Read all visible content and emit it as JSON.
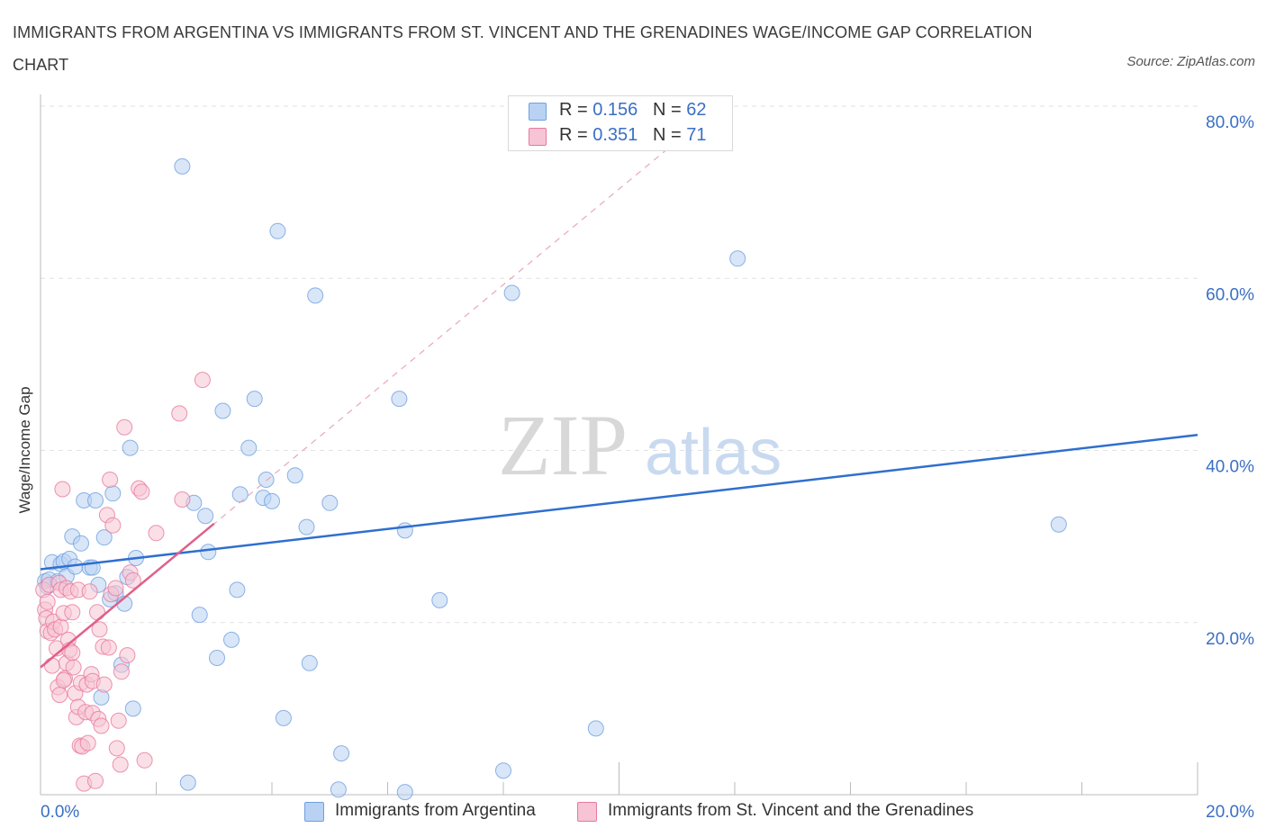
{
  "title": "IMMIGRANTS FROM ARGENTINA VS IMMIGRANTS FROM ST. VINCENT AND THE GRENADINES WAGE/INCOME GAP CORRELATION CHART",
  "source": "Source: ZipAtlas.com",
  "watermark": {
    "zip": "ZIP",
    "atlas": "atlas"
  },
  "colors": {
    "blue": "#6fa0e0",
    "blue_fill": "#b9d2f3",
    "blue_line": "#2f6fcf",
    "pink": "#e8799c",
    "pink_fill": "#f6c4d4",
    "pink_line": "#e0608a",
    "axis_text": "#3a6fc4"
  },
  "legend_top": {
    "rows": [
      {
        "r_label": "R = ",
        "r_value": "0.156",
        "n_label": "N = ",
        "n_value": "62"
      },
      {
        "r_label": "R = ",
        "r_value": "0.351",
        "n_label": "N = ",
        "n_value": "71"
      }
    ]
  },
  "legend_bottom": {
    "series": [
      "Immigrants from Argentina",
      "Immigrants from St. Vincent and the Grenadines"
    ]
  },
  "chart_data": {
    "type": "scatter",
    "title": "IMMIGRANTS FROM ARGENTINA VS IMMIGRANTS FROM ST. VINCENT AND THE GRENADINES WAGE/INCOME GAP CORRELATION CHART",
    "xlabel": "",
    "ylabel": "Wage/Income Gap",
    "xlim": [
      0,
      20
    ],
    "ylim": [
      0,
      80
    ],
    "x_ticks": [
      "0.0%",
      "20.0%"
    ],
    "y_ticks": [
      "20.0%",
      "40.0%",
      "60.0%",
      "80.0%"
    ],
    "y_tick_values": [
      20,
      40,
      60,
      80
    ],
    "grid": true,
    "legend_position": "top-center",
    "series": [
      {
        "name": "Immigrants from Argentina",
        "color": "#6fa0e0",
        "R": 0.156,
        "N": 62,
        "trend": {
          "x": [
            0,
            20
          ],
          "y": [
            26.2,
            41.8
          ]
        },
        "points": [
          [
            0.08,
            24.8
          ],
          [
            0.12,
            24.2
          ],
          [
            0.15,
            25.0
          ],
          [
            0.2,
            27.0
          ],
          [
            0.3,
            24.8
          ],
          [
            0.35,
            26.8
          ],
          [
            0.4,
            27.1
          ],
          [
            0.45,
            25.4
          ],
          [
            0.5,
            27.4
          ],
          [
            0.55,
            30.0
          ],
          [
            0.6,
            26.5
          ],
          [
            0.7,
            29.2
          ],
          [
            0.75,
            34.2
          ],
          [
            0.85,
            26.4
          ],
          [
            0.9,
            26.4
          ],
          [
            0.95,
            34.2
          ],
          [
            1.0,
            24.4
          ],
          [
            1.05,
            11.3
          ],
          [
            1.1,
            29.9
          ],
          [
            1.2,
            22.7
          ],
          [
            1.25,
            35.0
          ],
          [
            1.3,
            23.4
          ],
          [
            1.4,
            15.1
          ],
          [
            1.45,
            22.2
          ],
          [
            1.5,
            25.3
          ],
          [
            1.55,
            40.3
          ],
          [
            1.6,
            10.0
          ],
          [
            1.65,
            27.5
          ],
          [
            2.45,
            73.0
          ],
          [
            2.55,
            1.4
          ],
          [
            2.65,
            33.9
          ],
          [
            2.75,
            20.9
          ],
          [
            2.85,
            32.4
          ],
          [
            2.9,
            28.2
          ],
          [
            3.05,
            15.9
          ],
          [
            3.15,
            44.6
          ],
          [
            3.3,
            18.0
          ],
          [
            3.4,
            23.8
          ],
          [
            3.45,
            34.9
          ],
          [
            3.6,
            40.3
          ],
          [
            3.7,
            46.0
          ],
          [
            3.85,
            34.5
          ],
          [
            3.9,
            36.6
          ],
          [
            4.0,
            34.1
          ],
          [
            4.1,
            65.5
          ],
          [
            4.2,
            8.9
          ],
          [
            4.4,
            37.1
          ],
          [
            4.6,
            31.1
          ],
          [
            4.65,
            15.3
          ],
          [
            4.75,
            58.0
          ],
          [
            5.0,
            33.9
          ],
          [
            5.15,
            0.6
          ],
          [
            5.2,
            4.8
          ],
          [
            6.2,
            46.0
          ],
          [
            6.3,
            30.7
          ],
          [
            6.3,
            0.3
          ],
          [
            6.9,
            22.6
          ],
          [
            8.0,
            2.8
          ],
          [
            8.15,
            58.3
          ],
          [
            9.6,
            7.7
          ],
          [
            12.05,
            62.3
          ],
          [
            17.6,
            31.4
          ]
        ]
      },
      {
        "name": "Immigrants from St. Vincent and the Grenadines",
        "color": "#e8799c",
        "R": 0.351,
        "N": 71,
        "trend": {
          "x": [
            0,
            3.0
          ],
          "y": [
            14.8,
            31.5
          ]
        },
        "trend_extended": {
          "x": [
            0,
            11.3
          ],
          "y": [
            14.8,
            77.6
          ]
        },
        "points": [
          [
            0.05,
            23.8
          ],
          [
            0.08,
            21.5
          ],
          [
            0.1,
            20.5
          ],
          [
            0.12,
            19.0
          ],
          [
            0.12,
            22.4
          ],
          [
            0.15,
            24.4
          ],
          [
            0.18,
            18.8
          ],
          [
            0.2,
            15.0
          ],
          [
            0.22,
            20.1
          ],
          [
            0.25,
            19.2
          ],
          [
            0.28,
            17.0
          ],
          [
            0.3,
            12.5
          ],
          [
            0.32,
            24.6
          ],
          [
            0.33,
            11.6
          ],
          [
            0.35,
            19.5
          ],
          [
            0.35,
            23.8
          ],
          [
            0.38,
            35.5
          ],
          [
            0.4,
            21.1
          ],
          [
            0.42,
            13.5
          ],
          [
            0.45,
            15.3
          ],
          [
            0.45,
            24.0
          ],
          [
            0.48,
            18.0
          ],
          [
            0.5,
            16.8
          ],
          [
            0.52,
            23.6
          ],
          [
            0.55,
            21.2
          ],
          [
            0.57,
            14.8
          ],
          [
            0.6,
            11.8
          ],
          [
            0.62,
            9.0
          ],
          [
            0.65,
            10.2
          ],
          [
            0.65,
            23.8
          ],
          [
            0.68,
            5.7
          ],
          [
            0.7,
            13.0
          ],
          [
            0.72,
            5.6
          ],
          [
            0.75,
            1.3
          ],
          [
            0.78,
            9.6
          ],
          [
            0.8,
            12.8
          ],
          [
            0.82,
            6.0
          ],
          [
            0.85,
            23.6
          ],
          [
            0.88,
            14.0
          ],
          [
            0.9,
            13.2
          ],
          [
            0.9,
            9.5
          ],
          [
            0.95,
            1.6
          ],
          [
            0.98,
            21.2
          ],
          [
            1.0,
            8.8
          ],
          [
            1.02,
            19.2
          ],
          [
            1.05,
            8.0
          ],
          [
            1.08,
            17.2
          ],
          [
            1.1,
            12.8
          ],
          [
            1.15,
            32.5
          ],
          [
            1.18,
            17.1
          ],
          [
            1.2,
            36.6
          ],
          [
            1.22,
            23.3
          ],
          [
            1.25,
            31.3
          ],
          [
            1.3,
            24.0
          ],
          [
            1.32,
            5.4
          ],
          [
            1.35,
            8.6
          ],
          [
            1.38,
            3.5
          ],
          [
            1.4,
            14.3
          ],
          [
            1.45,
            42.7
          ],
          [
            1.5,
            16.2
          ],
          [
            1.55,
            25.8
          ],
          [
            1.6,
            24.9
          ],
          [
            1.7,
            35.6
          ],
          [
            1.75,
            35.2
          ],
          [
            1.8,
            4.0
          ],
          [
            2.0,
            30.4
          ],
          [
            2.4,
            44.3
          ],
          [
            2.45,
            34.3
          ],
          [
            2.8,
            48.2
          ],
          [
            0.4,
            13.3
          ],
          [
            0.55,
            16.5
          ]
        ]
      }
    ]
  }
}
